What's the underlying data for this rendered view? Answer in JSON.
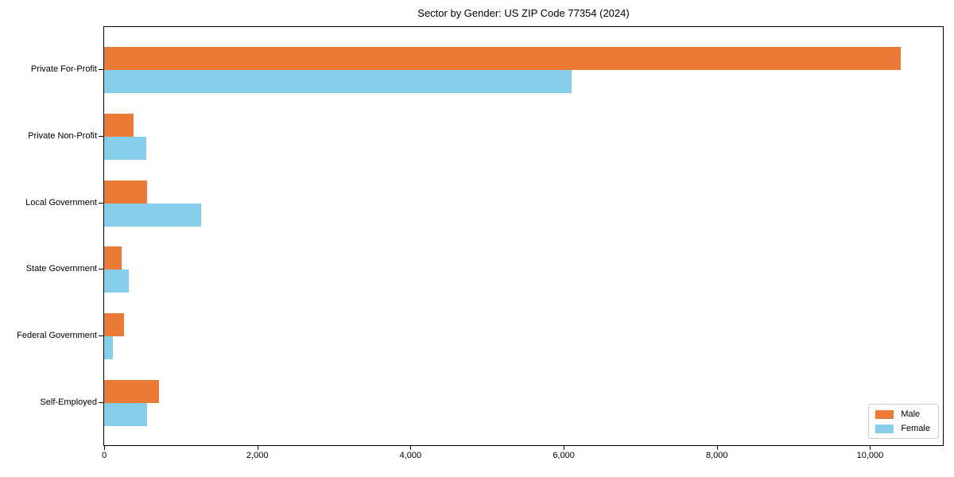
{
  "title": "Sector by Gender: US ZIP Code 77354 (2024)",
  "chart_data": {
    "type": "bar",
    "orientation": "horizontal",
    "title": "Sector by Gender: US ZIP Code 77354 (2024)",
    "categories": [
      "Private For-Profit",
      "Private Non-Profit",
      "Local Government",
      "State Government",
      "Federal Government",
      "Self-Employed"
    ],
    "series": [
      {
        "name": "Male",
        "color": "#EB7A36",
        "values": [
          10400,
          380,
          560,
          230,
          260,
          720
        ]
      },
      {
        "name": "Female",
        "color": "#87CEEB",
        "values": [
          6100,
          550,
          1270,
          320,
          110,
          560
        ]
      }
    ],
    "xlabel": "",
    "ylabel": "",
    "xlim": [
      0,
      10950
    ],
    "xticks": [
      0,
      2000,
      4000,
      6000,
      8000,
      10000
    ],
    "xtick_labels": [
      "0",
      "2,000",
      "4,000",
      "6,000",
      "8,000",
      "10,000"
    ],
    "legend_position": "lower right",
    "grid": false,
    "bar_color_male": "#EB7A36",
    "bar_color_female": "#87CEEB"
  }
}
